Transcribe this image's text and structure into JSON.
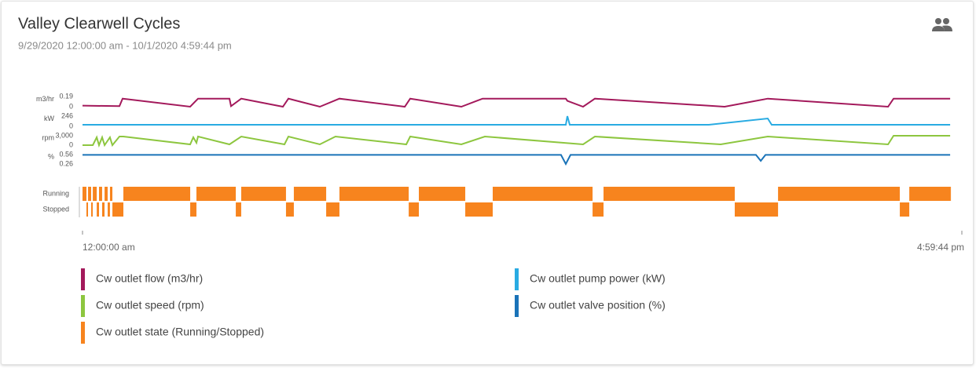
{
  "header": {
    "title": "Valley Clearwell Cycles",
    "subtitle": "9/29/2020 12:00:00 am - 10/1/2020 4:59:44 pm"
  },
  "chart_data": [
    {
      "type": "line",
      "y_label": "m3/hr",
      "ylim": [
        0,
        0.19
      ],
      "yticks": [
        0,
        0.19
      ],
      "x": [
        0,
        2.73,
        2.96,
        7.96,
        8.54,
        10.86,
        10.98,
        11.73,
        14.81,
        15.22,
        17.54,
        18.99,
        23.82,
        24.22,
        28.0,
        29.57,
        35.72,
        35.84,
        37.0,
        37.87,
        47.46,
        50.65,
        59.54,
        59.95,
        64.13
      ],
      "series": [
        {
          "name": "Cw outlet flow (m3/hr)",
          "color": "#a3195b",
          "values": [
            0.02,
            0.01,
            0.15,
            0,
            0.15,
            0.15,
            0.01,
            0.15,
            0,
            0.15,
            0,
            0.15,
            0,
            0.15,
            0,
            0.15,
            0.15,
            0.11,
            0,
            0.15,
            0,
            0.15,
            0,
            0.15,
            0.15
          ]
        }
      ]
    },
    {
      "type": "line",
      "y_label": "kW",
      "ylim": [
        0,
        246
      ],
      "yticks": [
        0,
        246
      ],
      "x": [
        0,
        35.72,
        35.84,
        36.01,
        46.29,
        50.65,
        50.94,
        64.13
      ],
      "series": [
        {
          "name": "Cw outlet pump power (kW)",
          "color": "#29abe2",
          "values": [
            38,
            38,
            246,
            38,
            38,
            189,
            38,
            38
          ]
        }
      ]
    },
    {
      "type": "line",
      "y_label": "rpm",
      "ylim": [
        0,
        3000
      ],
      "yticks": [
        0,
        {
          "value": 3000,
          "label": "3,000"
        }
      ],
      "x": [
        0,
        0.76,
        1.05,
        1.22,
        1.45,
        1.63,
        2.03,
        2.21,
        2.73,
        3.02,
        7.96,
        8.19,
        8.42,
        8.54,
        10.86,
        11.73,
        14.93,
        15.22,
        17.54,
        18.7,
        23.93,
        24.22,
        28.0,
        29.74,
        37.0,
        37.87,
        47.17,
        50.65,
        59.54,
        59.95,
        64.13
      ],
      "series": [
        {
          "name": "Cw outlet speed (rpm)",
          "color": "#8dc63f",
          "values": [
            0,
            0,
            2500,
            0,
            2500,
            0,
            2500,
            0,
            2750,
            2750,
            250,
            2500,
            750,
            2750,
            250,
            2750,
            250,
            2750,
            250,
            2750,
            250,
            2750,
            250,
            2750,
            250,
            2750,
            250,
            2750,
            250,
            3000,
            3000
          ]
        }
      ]
    },
    {
      "type": "line",
      "y_label": "%",
      "ylim": [
        0.26,
        0.56
      ],
      "yticks": [
        0.26,
        0.56
      ],
      "x": [
        0,
        35.37,
        35.72,
        36.07,
        49.78,
        50.13,
        50.48,
        64.13
      ],
      "series": [
        {
          "name": "Cw outlet valve position (%)",
          "color": "#1a73b8",
          "values": [
            0.55,
            0.55,
            0.26,
            0.55,
            0.55,
            0.36,
            0.55,
            0.55
          ]
        }
      ]
    },
    {
      "type": "step",
      "ylim": [
        0,
        1
      ],
      "yticks": [
        {
          "value": 1,
          "label": "Running"
        },
        {
          "value": 0,
          "label": "Stopped"
        }
      ],
      "xlim": [
        0,
        64.9956
      ],
      "xticks": [
        {
          "value": 0,
          "label": "12:00:00 am"
        },
        {
          "value": 64.9956,
          "label": "4:59:44 pm"
        }
      ],
      "x": [
        0,
        0.29,
        0.41,
        0.64,
        0.76,
        1.05,
        1.22,
        1.45,
        1.63,
        1.86,
        2.03,
        2.21,
        3.02,
        7.96,
        8.42,
        11.33,
        11.73,
        15.04,
        15.62,
        18.01,
        18.99,
        24.11,
        24.86,
        28.29,
        30.32,
        37.7,
        38.51,
        48.21,
        51.41,
        60.41,
        61.11,
        64.13
      ],
      "series": [
        {
          "name": "Cw outlet state (Running/Stopped)",
          "color": "#f7841e",
          "values": [
            1,
            0,
            1,
            0,
            1,
            0,
            1,
            0,
            1,
            0,
            1,
            0,
            1,
            0,
            1,
            0,
            1,
            0,
            1,
            0,
            1,
            0,
            1,
            0,
            1,
            0,
            1,
            0,
            1,
            0,
            1,
            1
          ]
        }
      ]
    }
  ]
}
